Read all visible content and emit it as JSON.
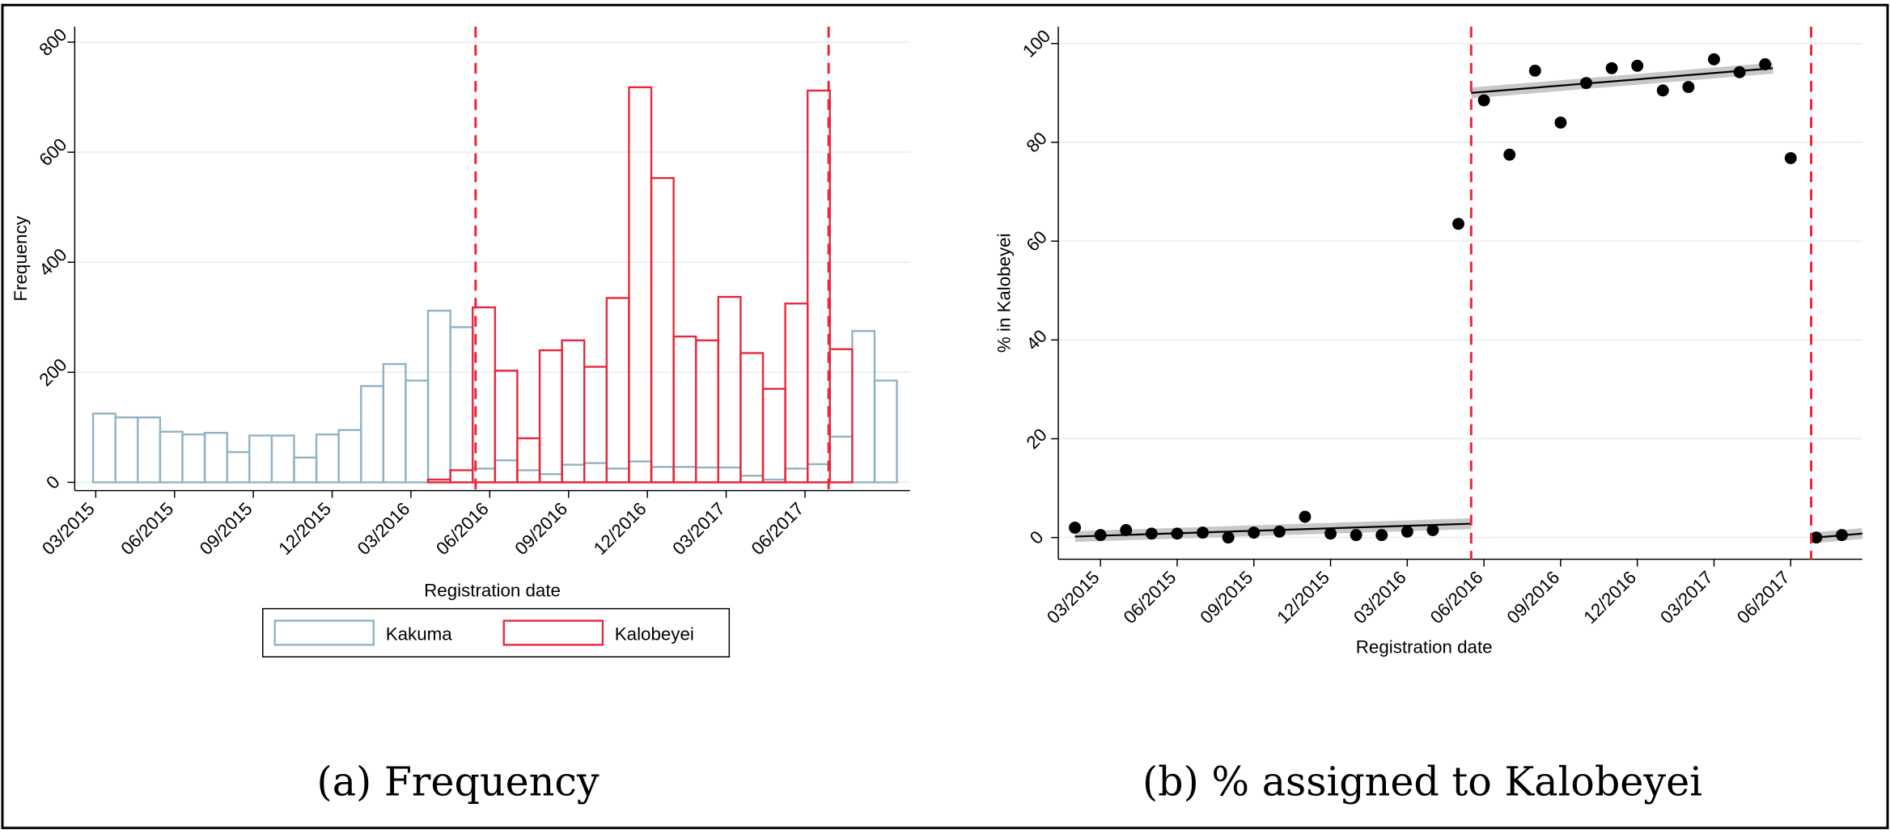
{
  "chart_data": [
    {
      "type": "histogram",
      "caption": "(a) Frequency",
      "xlabel": "Registration date",
      "ylabel": "Frequency",
      "bins": [
        -0.1,
        0.75,
        1.6,
        2.45,
        3.3,
        4.15,
        5,
        5.85,
        6.7,
        7.55,
        8.4,
        9.25,
        10.1,
        10.95,
        11.8,
        12.65,
        13.5,
        14.35,
        15.2,
        16.05,
        16.9,
        17.75,
        18.6,
        19.45,
        20.3,
        21.15,
        22,
        22.85,
        23.7,
        24.55,
        25.4,
        26.25,
        27.1,
        27.95,
        28.8,
        29.65,
        30.5
      ],
      "series": [
        {
          "name": "Kakuma",
          "color": "#8fb3c4",
          "values": [
            125,
            118,
            118,
            92,
            87,
            90,
            55,
            85,
            85,
            45,
            87,
            95,
            175,
            215,
            185,
            312,
            282,
            25,
            40,
            22,
            15,
            32,
            35,
            25,
            38,
            28,
            28,
            27,
            27,
            12,
            5,
            25,
            33,
            83,
            275,
            185
          ]
        },
        {
          "name": "Kalobeyei",
          "color": "#e8283a",
          "values": [
            0,
            0,
            0,
            0,
            0,
            0,
            0,
            0,
            0,
            0,
            0,
            0,
            0,
            0,
            0,
            5,
            22,
            318,
            203,
            80,
            240,
            258,
            210,
            335,
            718,
            553,
            265,
            258,
            337,
            235,
            170,
            325,
            712,
            242,
            0,
            0
          ]
        }
      ],
      "xlim": [
        -0.8,
        31
      ],
      "ylim": [
        -15,
        828
      ],
      "xticks": [
        {
          "value": 0,
          "label": "03/2015"
        },
        {
          "value": 3,
          "label": "06/2015"
        },
        {
          "value": 6,
          "label": "09/2015"
        },
        {
          "value": 9,
          "label": "12/2015"
        },
        {
          "value": 12,
          "label": "03/2016"
        },
        {
          "value": 15,
          "label": "06/2016"
        },
        {
          "value": 18,
          "label": "09/2016"
        },
        {
          "value": 21,
          "label": "12/2016"
        },
        {
          "value": 24,
          "label": "03/2017"
        },
        {
          "value": 27,
          "label": "06/2017"
        }
      ],
      "yticks": [
        0,
        200,
        400,
        600,
        800
      ],
      "grid": true,
      "vlines": [
        14.46,
        27.9
      ],
      "vline_color": "#e8283a"
    },
    {
      "type": "scatter",
      "caption": "(b) % assigned to Kalobeyei",
      "xlabel": "Registration date",
      "ylabel": "% in Kalobeyei",
      "x": [
        -1,
        0,
        1,
        2,
        3,
        4,
        5,
        6,
        7,
        8,
        9,
        10,
        11,
        12,
        13,
        14,
        15,
        16,
        17,
        18,
        19,
        20,
        21,
        22,
        23,
        24,
        25,
        26,
        27,
        28,
        29
      ],
      "values": [
        2,
        0.5,
        1.5,
        0.8,
        0.8,
        1,
        0,
        1,
        1.2,
        4.2,
        0.8,
        0.5,
        0.5,
        1.2,
        1.5,
        63.5,
        88.5,
        77.5,
        94.5,
        84,
        92,
        95,
        95.5,
        90.5,
        91.2,
        96.8,
        94.2,
        95.8,
        76.8,
        0,
        0.5
      ],
      "color": "#000000",
      "fit_lines": [
        {
          "x": [
            -1,
            14.5
          ],
          "y": [
            0.2,
            2.8
          ]
        },
        {
          "x": [
            14.5,
            26.3
          ],
          "y": [
            90,
            95
          ]
        },
        {
          "x": [
            28,
            29.8
          ],
          "y": [
            0,
            0.8
          ]
        }
      ],
      "xlim": [
        -1.65,
        29.8
      ],
      "ylim": [
        -4.4,
        103.4
      ],
      "xticks": [
        {
          "value": 0,
          "label": "03/2015"
        },
        {
          "value": 3,
          "label": "06/2015"
        },
        {
          "value": 6,
          "label": "09/2015"
        },
        {
          "value": 9,
          "label": "12/2015"
        },
        {
          "value": 12,
          "label": "03/2016"
        },
        {
          "value": 15,
          "label": "06/2016"
        },
        {
          "value": 18,
          "label": "09/2016"
        },
        {
          "value": 21,
          "label": "12/2016"
        },
        {
          "value": 24,
          "label": "03/2017"
        },
        {
          "value": 27,
          "label": "06/2017"
        }
      ],
      "yticks": [
        0,
        20,
        40,
        60,
        80,
        100
      ],
      "grid": true,
      "vlines": [
        14.5,
        27.8
      ],
      "vline_color": "#e8283a"
    }
  ]
}
